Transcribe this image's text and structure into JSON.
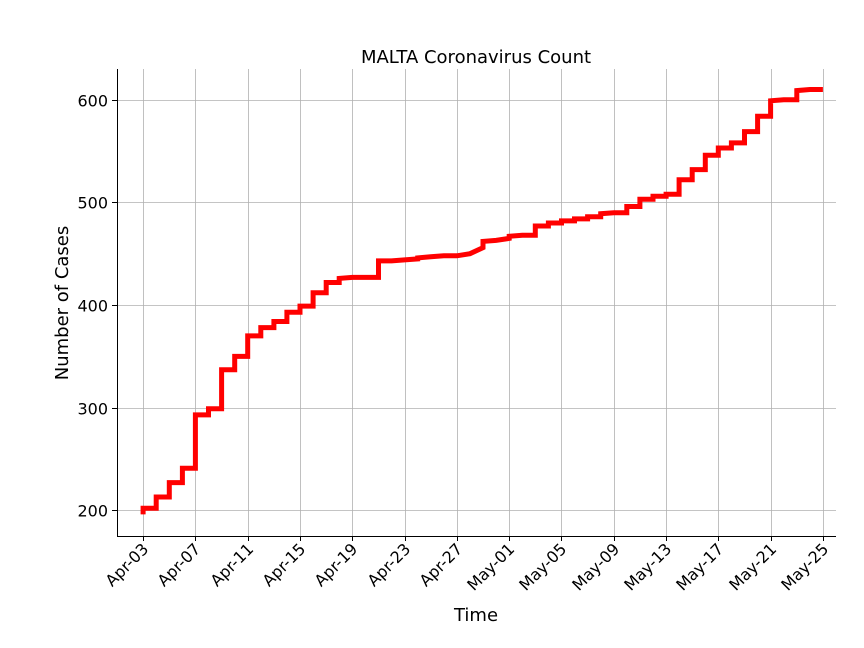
{
  "chart_data": {
    "type": "line",
    "title": "MALTA Coronavirus Count",
    "xlabel": "Time",
    "ylabel": "Number of Cases",
    "grid": true,
    "ylim": [
      175,
      630
    ],
    "xlim": [
      "2020-04-01",
      "2020-05-26"
    ],
    "yticks": [
      200,
      300,
      400,
      500,
      600
    ],
    "xticks": [
      {
        "date": "2020-04-03",
        "label": "Apr-03"
      },
      {
        "date": "2020-04-07",
        "label": "Apr-07"
      },
      {
        "date": "2020-04-11",
        "label": "Apr-11"
      },
      {
        "date": "2020-04-15",
        "label": "Apr-15"
      },
      {
        "date": "2020-04-19",
        "label": "Apr-19"
      },
      {
        "date": "2020-04-23",
        "label": "Apr-23"
      },
      {
        "date": "2020-04-27",
        "label": "Apr-27"
      },
      {
        "date": "2020-05-01",
        "label": "May-01"
      },
      {
        "date": "2020-05-05",
        "label": "May-05"
      },
      {
        "date": "2020-05-09",
        "label": "May-09"
      },
      {
        "date": "2020-05-13",
        "label": "May-13"
      },
      {
        "date": "2020-05-17",
        "label": "May-17"
      },
      {
        "date": "2020-05-21",
        "label": "May-21"
      },
      {
        "date": "2020-05-25",
        "label": "May-25"
      }
    ],
    "series": [
      {
        "color": "#ff0000",
        "x": [
          "2020-04-03",
          "2020-04-03",
          "2020-04-04",
          "2020-04-04",
          "2020-04-05",
          "2020-04-05",
          "2020-04-06",
          "2020-04-06",
          "2020-04-07",
          "2020-04-07",
          "2020-04-08",
          "2020-04-08",
          "2020-04-09",
          "2020-04-09",
          "2020-04-10",
          "2020-04-10",
          "2020-04-11",
          "2020-04-11",
          "2020-04-12",
          "2020-04-12",
          "2020-04-13",
          "2020-04-13",
          "2020-04-14",
          "2020-04-14",
          "2020-04-15",
          "2020-04-15",
          "2020-04-16",
          "2020-04-16",
          "2020-04-17",
          "2020-04-17",
          "2020-04-18",
          "2020-04-18",
          "2020-04-19",
          "2020-04-21",
          "2020-04-21",
          "2020-04-22",
          "2020-04-23",
          "2020-04-24",
          "2020-04-24",
          "2020-04-25",
          "2020-04-26",
          "2020-04-27",
          "2020-04-28",
          "2020-04-29",
          "2020-04-29",
          "2020-04-30",
          "2020-05-01",
          "2020-05-01",
          "2020-05-02",
          "2020-05-03",
          "2020-05-03",
          "2020-05-04",
          "2020-05-04",
          "2020-05-05",
          "2020-05-05",
          "2020-05-06",
          "2020-05-06",
          "2020-05-07",
          "2020-05-07",
          "2020-05-08",
          "2020-05-08",
          "2020-05-09",
          "2020-05-10",
          "2020-05-10",
          "2020-05-11",
          "2020-05-11",
          "2020-05-12",
          "2020-05-12",
          "2020-05-13",
          "2020-05-13",
          "2020-05-14",
          "2020-05-14",
          "2020-05-15",
          "2020-05-15",
          "2020-05-16",
          "2020-05-16",
          "2020-05-17",
          "2020-05-17",
          "2020-05-18",
          "2020-05-18",
          "2020-05-19",
          "2020-05-19",
          "2020-05-20",
          "2020-05-20",
          "2020-05-21",
          "2020-05-21",
          "2020-05-22",
          "2020-05-23",
          "2020-05-23",
          "2020-05-24",
          "2020-05-25"
        ],
        "y": [
          196,
          202,
          202,
          213,
          213,
          227,
          227,
          241,
          241,
          293,
          293,
          299,
          299,
          337,
          337,
          350,
          350,
          370,
          370,
          378,
          378,
          384,
          384,
          393,
          393,
          399,
          399,
          412,
          412,
          422,
          422,
          426,
          427,
          427,
          443,
          443,
          444,
          445,
          446,
          447,
          448,
          448,
          450,
          456,
          462,
          463,
          465,
          467,
          468,
          468,
          477,
          477,
          480,
          480,
          482,
          482,
          484,
          484,
          486,
          486,
          489,
          490,
          490,
          496,
          496,
          503,
          503,
          506,
          506,
          508,
          508,
          522,
          522,
          532,
          532,
          546,
          546,
          553,
          553,
          558,
          558,
          569,
          569,
          584,
          584,
          599,
          600,
          600,
          609,
          610,
          610
        ]
      }
    ]
  }
}
